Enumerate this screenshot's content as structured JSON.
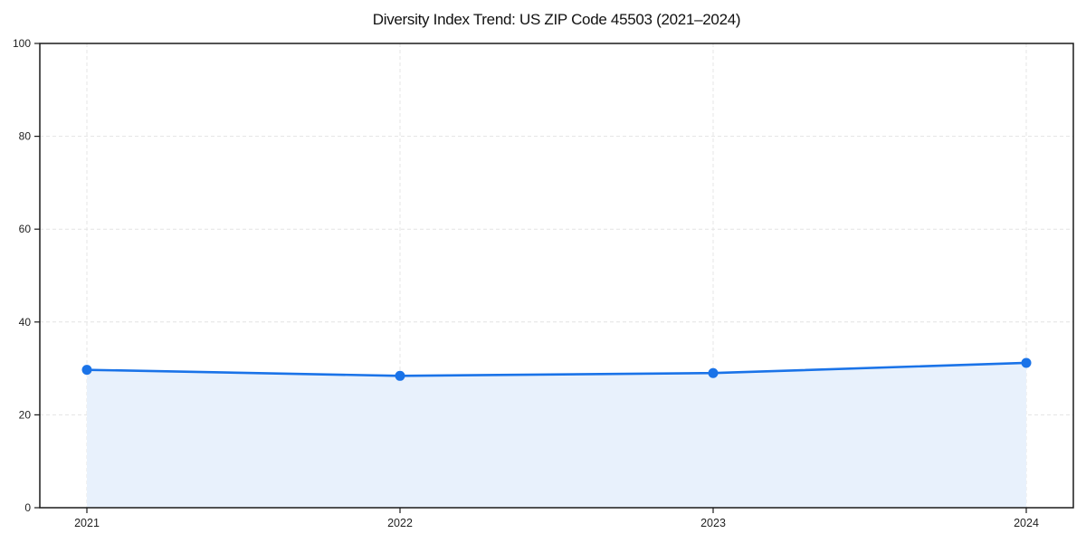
{
  "chart_data": {
    "type": "area",
    "title": "Diversity Index Trend: US ZIP Code 45503 (2021–2024)",
    "categories": [
      "2021",
      "2022",
      "2023",
      "2024"
    ],
    "values": [
      29.7,
      28.4,
      29.0,
      31.2
    ],
    "xlabel": "",
    "ylabel": "",
    "ylim": [
      0,
      100
    ],
    "yticks": [
      0,
      20,
      40,
      60,
      80,
      100
    ],
    "grid": true,
    "legend": false,
    "marker": "circle",
    "colors": {
      "line": "#1a73e8",
      "fill": "#e8f1fc",
      "grid": "#e4e4e4",
      "spine": "#1a1a1a",
      "text": "#1f1f1f",
      "background": "#ffffff"
    }
  }
}
